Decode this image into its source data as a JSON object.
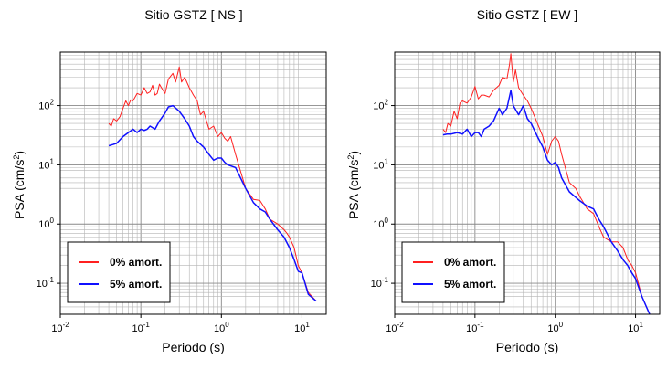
{
  "chart_data": [
    {
      "type": "line",
      "title": "Sitio GSTZ [ NS ]",
      "xlabel": "Periodo (s)",
      "ylabel_main": "PSA (cm/s",
      "ylabel_exp": "2",
      "ylabel_tail": ")",
      "xscale": "log",
      "yscale": "log",
      "xlim": [
        0.01,
        20
      ],
      "ylim": [
        0.03,
        800
      ],
      "grid": true,
      "legend_position": "bottom-left",
      "x_ticks": [
        {
          "base": "10",
          "exp": "-2",
          "value": 0.01
        },
        {
          "base": "10",
          "exp": "-1",
          "value": 0.1
        },
        {
          "base": "10",
          "exp": "0",
          "value": 1
        },
        {
          "base": "10",
          "exp": "1",
          "value": 10
        }
      ],
      "y_ticks": [
        {
          "base": "10",
          "exp": "-1",
          "value": 0.1
        },
        {
          "base": "10",
          "exp": "0",
          "value": 1
        },
        {
          "base": "10",
          "exp": "1",
          "value": 10
        },
        {
          "base": "10",
          "exp": "2",
          "value": 100
        }
      ],
      "series": [
        {
          "name": "0% amort.",
          "color": "#ff2020",
          "x": [
            0.04,
            0.043,
            0.046,
            0.05,
            0.055,
            0.06,
            0.065,
            0.07,
            0.075,
            0.08,
            0.09,
            0.1,
            0.11,
            0.12,
            0.13,
            0.14,
            0.15,
            0.16,
            0.17,
            0.18,
            0.2,
            0.22,
            0.25,
            0.27,
            0.3,
            0.32,
            0.35,
            0.4,
            0.45,
            0.5,
            0.55,
            0.6,
            0.7,
            0.8,
            0.9,
            1.0,
            1.1,
            1.2,
            1.3,
            1.5,
            1.8,
            2.0,
            2.5,
            3.0,
            3.5,
            4.0,
            5.0,
            6.0,
            6.5,
            7.0,
            8.0,
            9.0,
            10.0,
            12.0,
            15.0
          ],
          "y": [
            50,
            45,
            60,
            55,
            65,
            90,
            120,
            100,
            125,
            120,
            160,
            150,
            200,
            160,
            170,
            220,
            150,
            160,
            230,
            200,
            160,
            280,
            350,
            250,
            450,
            250,
            300,
            200,
            150,
            120,
            70,
            80,
            40,
            45,
            30,
            35,
            28,
            25,
            30,
            15,
            6.5,
            4,
            2.6,
            2.5,
            1.8,
            1.2,
            1.0,
            0.8,
            0.7,
            0.6,
            0.4,
            0.2,
            0.15,
            0.07,
            0.05
          ]
        },
        {
          "name": "5% amort.",
          "color": "#1010ff",
          "x": [
            0.04,
            0.045,
            0.05,
            0.06,
            0.07,
            0.08,
            0.09,
            0.1,
            0.11,
            0.12,
            0.13,
            0.15,
            0.17,
            0.2,
            0.22,
            0.25,
            0.3,
            0.35,
            0.4,
            0.45,
            0.5,
            0.6,
            0.7,
            0.8,
            0.9,
            1.0,
            1.1,
            1.2,
            1.5,
            2.0,
            2.5,
            3.0,
            3.5,
            4.0,
            5.0,
            6.0,
            7.0,
            8.0,
            9.0,
            10.0,
            12.0,
            15.0
          ],
          "y": [
            21,
            22,
            23,
            30,
            35,
            40,
            35,
            40,
            38,
            40,
            45,
            40,
            55,
            75,
            95,
            100,
            80,
            60,
            45,
            30,
            25,
            20,
            15,
            12,
            13,
            13,
            11,
            10,
            9,
            4,
            2.3,
            1.8,
            1.6,
            1.2,
            0.8,
            0.6,
            0.4,
            0.25,
            0.16,
            0.15,
            0.065,
            0.05
          ]
        }
      ]
    },
    {
      "type": "line",
      "title": "Sitio GSTZ [ EW ]",
      "xlabel": "Periodo (s)",
      "ylabel_main": "PSA (cm/s",
      "ylabel_exp": "2",
      "ylabel_tail": ")",
      "xscale": "log",
      "yscale": "log",
      "xlim": [
        0.01,
        20
      ],
      "ylim": [
        0.03,
        800
      ],
      "grid": true,
      "legend_position": "bottom-left",
      "x_ticks": [
        {
          "base": "10",
          "exp": "-2",
          "value": 0.01
        },
        {
          "base": "10",
          "exp": "-1",
          "value": 0.1
        },
        {
          "base": "10",
          "exp": "0",
          "value": 1
        },
        {
          "base": "10",
          "exp": "1",
          "value": 10
        }
      ],
      "y_ticks": [
        {
          "base": "10",
          "exp": "-1",
          "value": 0.1
        },
        {
          "base": "10",
          "exp": "0",
          "value": 1
        },
        {
          "base": "10",
          "exp": "1",
          "value": 10
        },
        {
          "base": "10",
          "exp": "2",
          "value": 100
        }
      ],
      "series": [
        {
          "name": "0% amort.",
          "color": "#ff2020",
          "x": [
            0.04,
            0.043,
            0.046,
            0.05,
            0.055,
            0.06,
            0.065,
            0.07,
            0.08,
            0.09,
            0.1,
            0.11,
            0.12,
            0.13,
            0.15,
            0.17,
            0.2,
            0.22,
            0.25,
            0.27,
            0.28,
            0.3,
            0.32,
            0.35,
            0.4,
            0.45,
            0.5,
            0.6,
            0.7,
            0.8,
            0.9,
            1.0,
            1.1,
            1.2,
            1.5,
            1.8,
            2.0,
            2.5,
            3.0,
            3.5,
            4.0,
            5.0,
            6.0,
            7.0,
            8.0,
            9.0,
            10.0,
            12.0,
            15.0
          ],
          "y": [
            40,
            35,
            50,
            45,
            80,
            60,
            110,
            120,
            110,
            140,
            210,
            130,
            150,
            150,
            140,
            180,
            220,
            300,
            280,
            500,
            750,
            250,
            400,
            200,
            150,
            120,
            90,
            50,
            30,
            15,
            25,
            30,
            25,
            15,
            5,
            4,
            3,
            1.8,
            1.5,
            0.9,
            0.6,
            0.5,
            0.5,
            0.4,
            0.25,
            0.2,
            0.15,
            0.06,
            0.03
          ]
        },
        {
          "name": "5% amort.",
          "color": "#1010ff",
          "x": [
            0.04,
            0.045,
            0.05,
            0.06,
            0.07,
            0.08,
            0.09,
            0.1,
            0.11,
            0.12,
            0.13,
            0.15,
            0.17,
            0.2,
            0.22,
            0.25,
            0.28,
            0.3,
            0.35,
            0.4,
            0.45,
            0.5,
            0.6,
            0.7,
            0.8,
            0.9,
            1.0,
            1.1,
            1.2,
            1.5,
            2.0,
            2.5,
            3.0,
            3.5,
            4.0,
            5.0,
            6.0,
            7.0,
            8.0,
            9.0,
            10.0,
            12.0,
            15.0
          ],
          "y": [
            32,
            33,
            33,
            35,
            33,
            40,
            30,
            35,
            35,
            30,
            40,
            45,
            55,
            90,
            70,
            90,
            180,
            100,
            70,
            100,
            60,
            50,
            30,
            20,
            12,
            10,
            11,
            9,
            6,
            3.5,
            2.5,
            2,
            1.8,
            1.2,
            0.9,
            0.5,
            0.35,
            0.25,
            0.2,
            0.15,
            0.12,
            0.06,
            0.03
          ]
        }
      ]
    }
  ]
}
